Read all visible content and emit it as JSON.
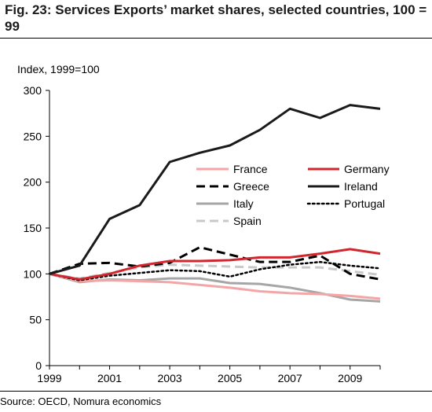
{
  "title": "Fig. 23: Services Exports’ market shares, selected countries, 100 = 99",
  "source": "Source: OECD, Nomura economics",
  "chart_data": {
    "type": "line",
    "ylabel": "Index, 1999=100",
    "xlabel": "",
    "x": [
      1999,
      2000,
      2001,
      2002,
      2003,
      2004,
      2005,
      2006,
      2007,
      2008,
      2009,
      2010
    ],
    "xticks": [
      "1999",
      "2001",
      "2003",
      "2005",
      "2007",
      "2009"
    ],
    "xlim": [
      1999,
      2010
    ],
    "yticks": [
      "0",
      "50",
      "100",
      "150",
      "200",
      "250",
      "300"
    ],
    "ylim": [
      0,
      300
    ],
    "legend_position": "center",
    "series": [
      {
        "name": "France",
        "color": "#f4a6a6",
        "style": "solid",
        "values": [
          100,
          92,
          93,
          92,
          91,
          88,
          85,
          81,
          79,
          78,
          76,
          73
        ]
      },
      {
        "name": "Germany",
        "color": "#d0262e",
        "style": "solid",
        "values": [
          100,
          94,
          100,
          109,
          114,
          114,
          115,
          118,
          118,
          122,
          127,
          122
        ]
      },
      {
        "name": "Greece",
        "color": "#000000",
        "style": "dashed",
        "values": [
          100,
          111,
          112,
          108,
          112,
          129,
          121,
          113,
          113,
          120,
          100,
          94
        ]
      },
      {
        "name": "Ireland",
        "color": "#1a1a1a",
        "style": "solid",
        "values": [
          100,
          109,
          160,
          175,
          222,
          232,
          240,
          257,
          280,
          270,
          284,
          280
        ]
      },
      {
        "name": "Italy",
        "color": "#a6a6a6",
        "style": "solid",
        "values": [
          100,
          91,
          94,
          93,
          95,
          95,
          90,
          89,
          85,
          79,
          72,
          70
        ]
      },
      {
        "name": "Portugal",
        "color": "#000000",
        "style": "dotted",
        "values": [
          100,
          93,
          98,
          101,
          104,
          103,
          97,
          105,
          110,
          113,
          109,
          106
        ]
      },
      {
        "name": "Spain",
        "color": "#c8c8c8",
        "style": "dashed",
        "values": [
          100,
          95,
          101,
          107,
          110,
          109,
          108,
          107,
          107,
          107,
          103,
          99
        ]
      }
    ]
  }
}
